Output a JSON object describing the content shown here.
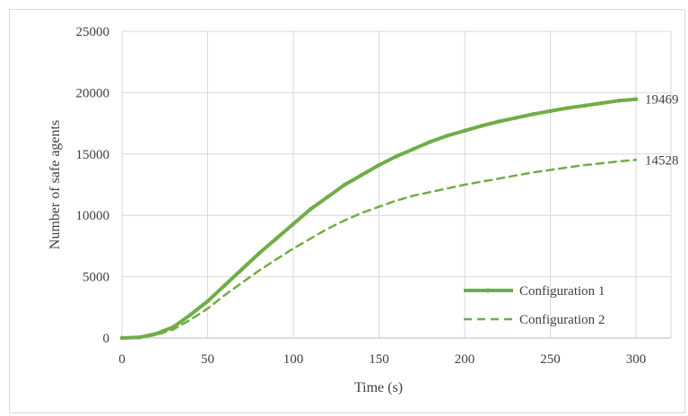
{
  "chart_data": {
    "type": "line",
    "title": "",
    "xlabel": "Time (s)",
    "ylabel": "Number of safe agents",
    "xlim": [
      0,
      300
    ],
    "ylim": [
      0,
      25000
    ],
    "x_ticks": [
      0,
      50,
      100,
      150,
      200,
      250,
      300
    ],
    "y_ticks": [
      0,
      5000,
      10000,
      15000,
      20000,
      25000
    ],
    "grid": true,
    "legend_position": "bottom-right",
    "series": [
      {
        "name": "Configuration 1",
        "color": "#70ad47",
        "style": "solid-with-markers",
        "end_label": "19469",
        "x": [
          0,
          10,
          20,
          30,
          40,
          50,
          60,
          70,
          80,
          90,
          100,
          110,
          120,
          130,
          140,
          150,
          160,
          170,
          180,
          190,
          200,
          210,
          220,
          230,
          240,
          250,
          260,
          270,
          280,
          290,
          300
        ],
        "values": [
          0,
          50,
          350,
          900,
          1900,
          3000,
          4300,
          5600,
          6900,
          8100,
          9300,
          10500,
          11500,
          12500,
          13300,
          14100,
          14800,
          15400,
          16000,
          16500,
          16900,
          17300,
          17650,
          17950,
          18250,
          18500,
          18750,
          18950,
          19150,
          19350,
          19469
        ]
      },
      {
        "name": "Configuration 2",
        "color": "#70ad47",
        "style": "dashed",
        "end_label": "14528",
        "x": [
          0,
          10,
          20,
          30,
          40,
          50,
          60,
          70,
          80,
          90,
          100,
          110,
          120,
          130,
          140,
          150,
          160,
          170,
          180,
          190,
          200,
          210,
          220,
          230,
          240,
          250,
          260,
          270,
          280,
          290,
          300
        ],
        "values": [
          0,
          30,
          250,
          700,
          1500,
          2400,
          3500,
          4500,
          5500,
          6400,
          7300,
          8100,
          8900,
          9600,
          10200,
          10700,
          11200,
          11600,
          11900,
          12200,
          12500,
          12750,
          13000,
          13250,
          13500,
          13700,
          13900,
          14100,
          14250,
          14400,
          14528
        ]
      }
    ]
  }
}
